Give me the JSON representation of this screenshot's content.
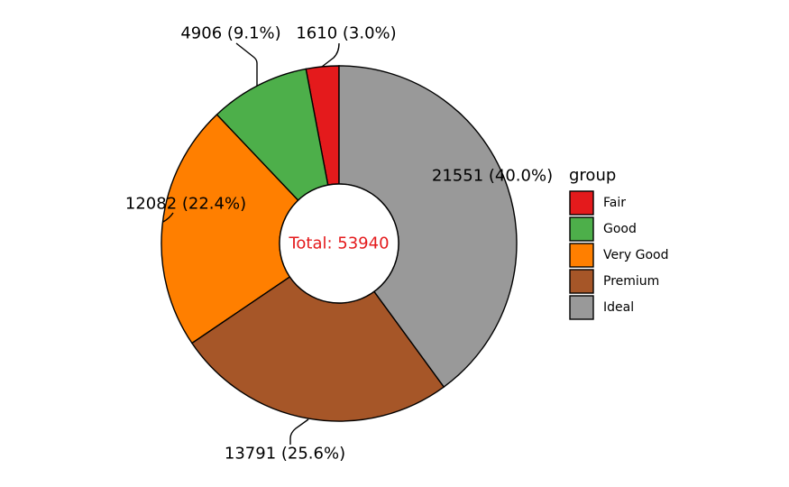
{
  "chart_data": {
    "type": "pie",
    "donut": true,
    "categories": [
      "Fair",
      "Good",
      "Very Good",
      "Premium",
      "Ideal"
    ],
    "values": [
      1610,
      4906,
      12082,
      13791,
      21551
    ],
    "labels": [
      "1610 (3.0%)",
      "4906 (9.1%)",
      "12082 (22.4%)",
      "13791 (25.6%)",
      "21551 (40.0%)"
    ],
    "colors": [
      "#e41a1c",
      "#4daf4a",
      "#ff7f00",
      "#a65628",
      "#999999"
    ],
    "center_label": "Total: 53940",
    "center_label_color": "#e41a1c",
    "legend_title": "group",
    "legend_placement": "right",
    "start_angle": "12 o'clock",
    "direction": "counterclockwise"
  }
}
